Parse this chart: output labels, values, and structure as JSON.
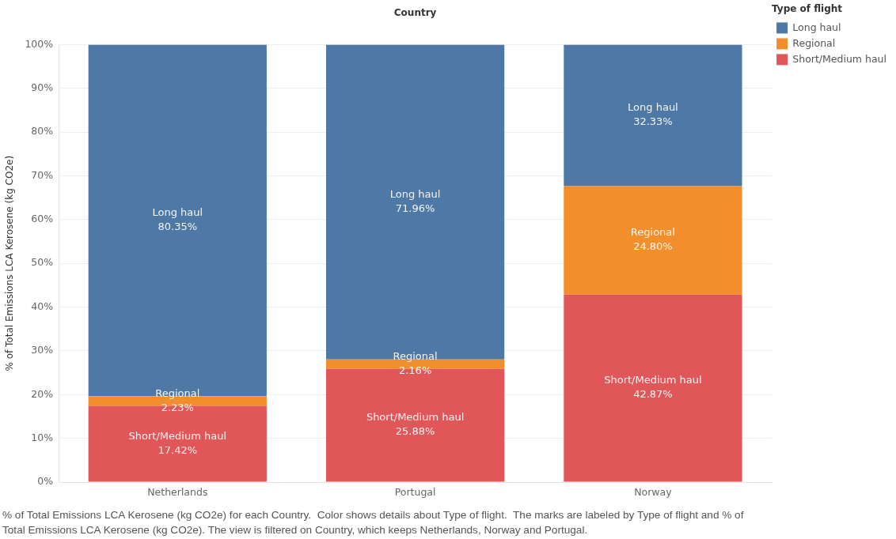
{
  "chart_data": {
    "type": "bar",
    "title": "Country",
    "ylabel": "% of Total Emissions LCA Kerosene (kg CO2e)",
    "legend_title": "Type of flight",
    "categories": [
      "Netherlands",
      "Portugal",
      "Norway"
    ],
    "series": [
      {
        "name": "Short/Medium haul",
        "color": "#e15759",
        "values": [
          17.42,
          25.88,
          42.87
        ],
        "value_labels": [
          "17.42%",
          "25.88%",
          "42.87%"
        ]
      },
      {
        "name": "Regional",
        "color": "#f28e2b",
        "values": [
          2.23,
          2.16,
          24.8
        ],
        "value_labels": [
          "2.23%",
          "2.16%",
          "24.80%"
        ]
      },
      {
        "name": "Long haul",
        "color": "#4e79a7",
        "values": [
          80.35,
          71.96,
          32.33
        ],
        "value_labels": [
          "80.35%",
          "71.96%",
          "32.33%"
        ]
      }
    ],
    "stacked": true,
    "ylim": [
      0,
      100
    ],
    "yticks": [
      {
        "value": 0,
        "label": "0%"
      },
      {
        "value": 10,
        "label": "10%"
      },
      {
        "value": 20,
        "label": "20%"
      },
      {
        "value": 30,
        "label": "30%"
      },
      {
        "value": 40,
        "label": "40%"
      },
      {
        "value": 50,
        "label": "50%"
      },
      {
        "value": 60,
        "label": "60%"
      },
      {
        "value": 70,
        "label": "70%"
      },
      {
        "value": 80,
        "label": "80%"
      },
      {
        "value": 90,
        "label": "90%"
      },
      {
        "value": 100,
        "label": "100%"
      }
    ],
    "grid": "y",
    "legend": "top right",
    "annotations": [
      "% of Total Emissions LCA Kerosene (kg CO2e) for each Country.  Color shows details about Type of flight.  The marks are labeled by Type of flight and % of Total Emissions LCA Kerosene (kg CO2e). The view is filtered on Country, which keeps Netherlands, Norway and Portugal."
    ]
  }
}
